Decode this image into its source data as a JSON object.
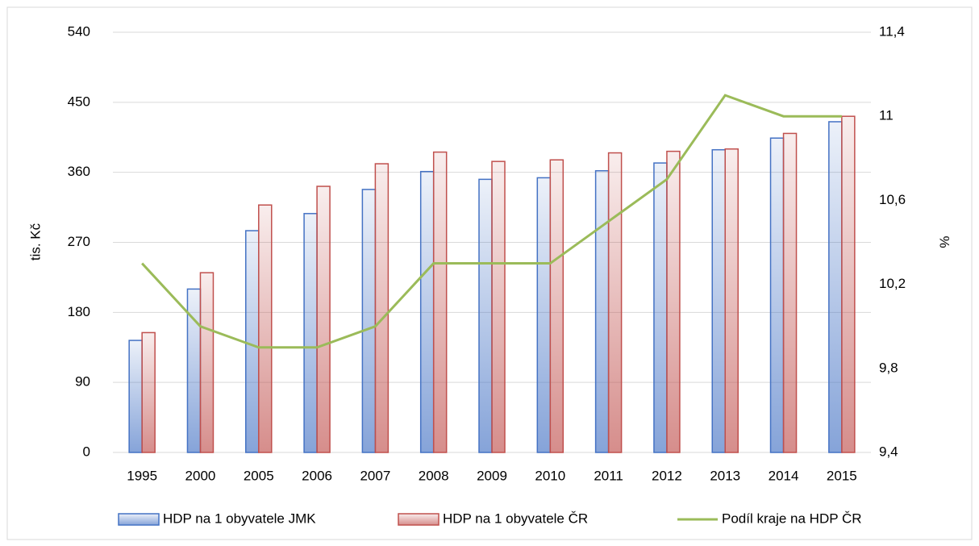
{
  "chart_data": {
    "type": "bar",
    "categories": [
      "1995",
      "2000",
      "2005",
      "2006",
      "2007",
      "2008",
      "2009",
      "2010",
      "2011",
      "2012",
      "2013",
      "2014",
      "2015"
    ],
    "series": [
      {
        "name": "HDP na 1 obyvatele JMK",
        "color": "#4472c4",
        "type": "bar",
        "values": [
          144,
          210,
          285,
          307,
          338,
          361,
          351,
          353,
          362,
          372,
          389,
          404,
          425
        ]
      },
      {
        "name": "HDP na 1 obyvatele ČR",
        "color": "#c0504d",
        "type": "bar",
        "values": [
          154,
          231,
          318,
          342,
          371,
          386,
          374,
          376,
          385,
          387,
          390,
          410,
          432
        ]
      },
      {
        "name": "Podíl kraje na HDP ČR",
        "color": "#9bbb59",
        "type": "line",
        "axis": "y2",
        "values": [
          10.3,
          10.0,
          9.9,
          9.9,
          10.0,
          10.3,
          10.3,
          10.3,
          10.5,
          10.7,
          11.1,
          11.0,
          11.0
        ]
      }
    ],
    "ylabel": "tis. Kč",
    "y2label": "%",
    "ylim": [
      0,
      540
    ],
    "yticks": [
      0,
      90,
      180,
      270,
      360,
      450,
      540
    ],
    "y2lim": [
      9.4,
      11.4
    ],
    "y2ticks": [
      {
        "value": 9.4,
        "label": "9,4"
      },
      {
        "value": 9.8,
        "label": "9,8"
      },
      {
        "value": 10.2,
        "label": "10,2"
      },
      {
        "value": 10.6,
        "label": "10,6"
      },
      11,
      {
        "value": 11.4,
        "label": "11,4"
      }
    ],
    "grid": true,
    "legend": "bottom"
  }
}
